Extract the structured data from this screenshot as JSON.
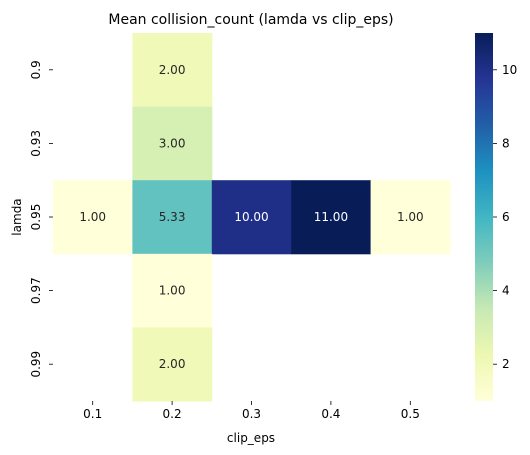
{
  "chart_data": {
    "type": "heatmap",
    "title": "Mean collision_count (lamda vs clip_eps)",
    "xlabel": "clip_eps",
    "ylabel": "lamda",
    "x_categories": [
      "0.1",
      "0.2",
      "0.3",
      "0.4",
      "0.5"
    ],
    "y_categories": [
      "0.9",
      "0.93",
      "0.95",
      "0.97",
      "0.99"
    ],
    "values": [
      [
        null,
        2.0,
        null,
        null,
        null
      ],
      [
        null,
        3.0,
        null,
        null,
        null
      ],
      [
        1.0,
        5.33,
        10.0,
        11.0,
        1.0
      ],
      [
        null,
        1.0,
        null,
        null,
        null
      ],
      [
        null,
        2.0,
        null,
        null,
        null
      ]
    ],
    "cell_labels": [
      [
        null,
        "2.00",
        null,
        null,
        null
      ],
      [
        null,
        "3.00",
        null,
        null,
        null
      ],
      [
        "1.00",
        "5.33",
        "10.00",
        "11.00",
        "1.00"
      ],
      [
        null,
        "1.00",
        null,
        null,
        null
      ],
      [
        null,
        "2.00",
        null,
        null,
        null
      ]
    ],
    "colormap": "YlGnBu",
    "color_range": [
      1,
      11
    ],
    "colorbar_ticks": [
      2,
      4,
      6,
      8,
      10
    ],
    "colorbar_tick_labels": [
      "2",
      "4",
      "6",
      "8",
      "10"
    ]
  }
}
